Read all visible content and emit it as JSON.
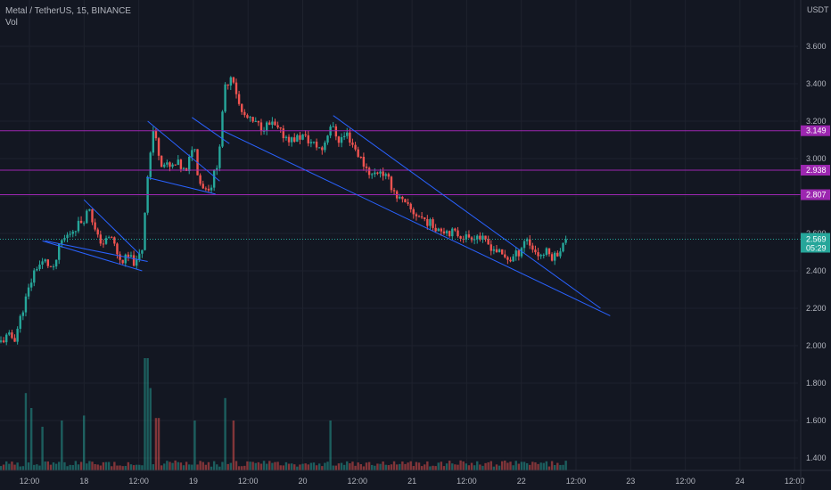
{
  "legend": {
    "symbol_line": "Metal / TetherUS, 15, BINANCE",
    "volume_label": "Vol"
  },
  "currency_label": "USDT",
  "colors": {
    "background": "#131722",
    "up": "#26a69a",
    "down": "#ef5350",
    "grid": "#1e222d",
    "trendline": "#2962ff",
    "level": "#9c27b0",
    "axis_text": "#b2b5be",
    "price_tag": "#26a69a"
  },
  "chart_data": {
    "type": "candlestick",
    "symbol": "Metal / TetherUS",
    "interval": "15",
    "exchange": "BINANCE",
    "x_ticks": [
      "12:00",
      "18",
      "12:00",
      "19",
      "12:00",
      "20",
      "12:00",
      "21",
      "12:00",
      "22",
      "12:00",
      "23",
      "12:00",
      "24",
      "12:00"
    ],
    "y_ticks": [
      "1.400",
      "1.600",
      "1.800",
      "2.000",
      "2.200",
      "2.400",
      "2.600",
      "2.800",
      "3.000",
      "3.200",
      "3.400",
      "3.600"
    ],
    "ylim": [
      1.35,
      3.72
    ],
    "price_path": [
      {
        "t": 0,
        "p": 2.02
      },
      {
        "t": 0.5,
        "p": 2.05
      },
      {
        "t": 1,
        "p": 2.04
      },
      {
        "t": 1.6,
        "p": 2.2
      },
      {
        "t": 2.5,
        "p": 2.42
      },
      {
        "t": 3.2,
        "p": 2.45
      },
      {
        "t": 3.8,
        "p": 2.4
      },
      {
        "t": 4.3,
        "p": 2.55
      },
      {
        "t": 4.7,
        "p": 2.58
      },
      {
        "t": 5.2,
        "p": 2.62
      },
      {
        "t": 6.0,
        "p": 2.68
      },
      {
        "t": 6.4,
        "p": 2.74
      },
      {
        "t": 6.9,
        "p": 2.58
      },
      {
        "t": 7.4,
        "p": 2.55
      },
      {
        "t": 8.0,
        "p": 2.58
      },
      {
        "t": 8.6,
        "p": 2.45
      },
      {
        "t": 9.2,
        "p": 2.47
      },
      {
        "t": 9.8,
        "p": 2.44
      },
      {
        "t": 10.2,
        "p": 2.52
      },
      {
        "t": 10.6,
        "p": 2.92
      },
      {
        "t": 11.0,
        "p": 3.15
      },
      {
        "t": 11.6,
        "p": 2.98
      },
      {
        "t": 12.2,
        "p": 2.95
      },
      {
        "t": 12.8,
        "p": 2.97
      },
      {
        "t": 13.4,
        "p": 2.92
      },
      {
        "t": 13.9,
        "p": 3.1
      },
      {
        "t": 14.3,
        "p": 2.88
      },
      {
        "t": 14.8,
        "p": 2.84
      },
      {
        "t": 15.2,
        "p": 2.86
      },
      {
        "t": 15.7,
        "p": 3.0
      },
      {
        "t": 16.2,
        "p": 3.38
      },
      {
        "t": 16.7,
        "p": 3.46
      },
      {
        "t": 17.3,
        "p": 3.25
      },
      {
        "t": 18.0,
        "p": 3.2
      },
      {
        "t": 18.8,
        "p": 3.17
      },
      {
        "t": 19.6,
        "p": 3.18
      },
      {
        "t": 20.3,
        "p": 3.13
      },
      {
        "t": 21.0,
        "p": 3.1
      },
      {
        "t": 21.8,
        "p": 3.12
      },
      {
        "t": 22.5,
        "p": 3.08
      },
      {
        "t": 23.2,
        "p": 3.05
      },
      {
        "t": 23.8,
        "p": 3.18
      },
      {
        "t": 24.4,
        "p": 3.1
      },
      {
        "t": 25.0,
        "p": 3.13
      },
      {
        "t": 25.6,
        "p": 3.05
      },
      {
        "t": 26.2,
        "p": 2.97
      },
      {
        "t": 26.8,
        "p": 2.91
      },
      {
        "t": 27.4,
        "p": 2.94
      },
      {
        "t": 28.0,
        "p": 2.88
      },
      {
        "t": 28.6,
        "p": 2.8
      },
      {
        "t": 29.2,
        "p": 2.75
      },
      {
        "t": 29.8,
        "p": 2.71
      },
      {
        "t": 30.5,
        "p": 2.68
      },
      {
        "t": 31.2,
        "p": 2.64
      },
      {
        "t": 32.0,
        "p": 2.62
      },
      {
        "t": 32.8,
        "p": 2.6
      },
      {
        "t": 33.6,
        "p": 2.58
      },
      {
        "t": 34.4,
        "p": 2.59
      },
      {
        "t": 35.0,
        "p": 2.55
      },
      {
        "t": 35.6,
        "p": 2.52
      },
      {
        "t": 36.2,
        "p": 2.48
      },
      {
        "t": 36.8,
        "p": 2.46
      },
      {
        "t": 37.4,
        "p": 2.5
      },
      {
        "t": 37.9,
        "p": 2.58
      },
      {
        "t": 38.4,
        "p": 2.52
      },
      {
        "t": 38.9,
        "p": 2.48
      },
      {
        "t": 39.4,
        "p": 2.5
      },
      {
        "t": 39.9,
        "p": 2.47
      },
      {
        "t": 40.4,
        "p": 2.52
      },
      {
        "t": 40.9,
        "p": 2.569
      }
    ],
    "volume_spikes": [
      {
        "t": 1.8,
        "v": 0.62
      },
      {
        "t": 2.2,
        "v": 0.5
      },
      {
        "t": 3.0,
        "v": 0.35
      },
      {
        "t": 4.4,
        "v": 0.4
      },
      {
        "t": 6.0,
        "v": 0.44
      },
      {
        "t": 10.5,
        "v": 0.9
      },
      {
        "t": 10.8,
        "v": 0.66
      },
      {
        "t": 11.3,
        "v": 0.42
      },
      {
        "t": 14.0,
        "v": 0.4
      },
      {
        "t": 16.2,
        "v": 0.58
      },
      {
        "t": 16.8,
        "v": 0.4
      },
      {
        "t": 23.8,
        "v": 0.4
      }
    ],
    "trendlines": [
      {
        "points": [
          [
            3.2,
            2.56
          ],
          [
            10.6,
            2.45
          ]
        ]
      },
      {
        "points": [
          [
            3.0,
            2.56
          ],
          [
            10.2,
            2.4
          ]
        ]
      },
      {
        "points": [
          [
            6.0,
            2.78
          ],
          [
            10.0,
            2.49
          ]
        ]
      },
      {
        "points": [
          [
            10.5,
            2.9
          ],
          [
            15.5,
            2.81
          ]
        ]
      },
      {
        "points": [
          [
            10.6,
            3.2
          ],
          [
            15.8,
            2.88
          ]
        ]
      },
      {
        "points": [
          [
            13.8,
            3.22
          ],
          [
            16.5,
            3.08
          ]
        ]
      },
      {
        "points": [
          [
            16.0,
            3.15
          ],
          [
            44.0,
            2.16
          ]
        ]
      },
      {
        "points": [
          [
            24.0,
            3.23
          ],
          [
            43.3,
            2.2
          ]
        ]
      }
    ],
    "levels": [
      {
        "price": 3.149,
        "label": "3.149"
      },
      {
        "price": 2.938,
        "label": "2.938"
      },
      {
        "price": 2.807,
        "label": "2.807"
      }
    ],
    "current_price": {
      "label": "2.569",
      "countdown": "05:29",
      "price": 2.569
    }
  }
}
